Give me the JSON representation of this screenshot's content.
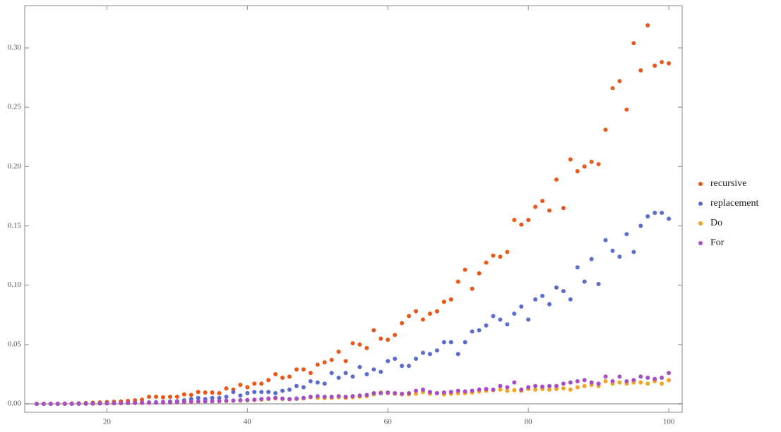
{
  "chart_data": {
    "type": "scatter",
    "x": [
      10,
      11,
      12,
      13,
      14,
      15,
      16,
      17,
      18,
      19,
      20,
      21,
      22,
      23,
      24,
      25,
      26,
      27,
      28,
      29,
      30,
      31,
      32,
      33,
      34,
      35,
      36,
      37,
      38,
      39,
      40,
      41,
      42,
      43,
      44,
      45,
      46,
      47,
      48,
      49,
      50,
      51,
      52,
      53,
      54,
      55,
      56,
      57,
      58,
      59,
      60,
      61,
      62,
      63,
      64,
      65,
      66,
      67,
      68,
      69,
      70,
      71,
      72,
      73,
      74,
      75,
      76,
      77,
      78,
      79,
      80,
      81,
      82,
      83,
      84,
      85,
      86,
      87,
      88,
      89,
      90,
      91,
      92,
      93,
      94,
      95,
      96,
      97,
      98,
      99,
      100
    ],
    "series": [
      {
        "name": "recursive",
        "color": "#e8581a",
        "values": [
          0,
          0,
          0,
          0.0001,
          0.0002,
          0.0003,
          0.0005,
          0.0007,
          0.001,
          0.0012,
          0.0015,
          0.0018,
          0.002,
          0.0025,
          0.003,
          0.0035,
          0.006,
          0.006,
          0.0055,
          0.006,
          0.006,
          0.008,
          0.0075,
          0.01,
          0.0095,
          0.0095,
          0.009,
          0.013,
          0.012,
          0.016,
          0.014,
          0.017,
          0.017,
          0.02,
          0.025,
          0.022,
          0.023,
          0.029,
          0.029,
          0.026,
          0.033,
          0.035,
          0.037,
          0.044,
          0.036,
          0.051,
          0.05,
          0.047,
          0.062,
          0.055,
          0.054,
          0.058,
          0.068,
          0.074,
          0.078,
          0.071,
          0.076,
          0.078,
          0.086,
          0.088,
          0.103,
          0.113,
          0.097,
          0.11,
          0.119,
          0.125,
          0.124,
          0.128,
          0.155,
          0.151,
          0.155,
          0.166,
          0.171,
          0.163,
          0.189,
          0.165,
          0.206,
          0.196,
          0.2,
          0.204,
          0.202,
          0.231,
          0.266,
          0.272,
          0.248,
          0.304,
          0.281,
          0.319,
          0.285,
          0.288,
          0.287
        ]
      },
      {
        "name": "replacement",
        "color": "#5a6ccc",
        "values": [
          0,
          0,
          0,
          0,
          0,
          0.0001,
          0.0001,
          0.0002,
          0.0002,
          0.0003,
          0.0004,
          0.0005,
          0.0006,
          0.0007,
          0.0008,
          0.001,
          0.0012,
          0.0014,
          0.0016,
          0.002,
          0.0022,
          0.003,
          0.004,
          0.005,
          0.004,
          0.005,
          0.005,
          0.006,
          0.01,
          0.007,
          0.009,
          0.01,
          0.01,
          0.01,
          0.009,
          0.011,
          0.012,
          0.015,
          0.014,
          0.019,
          0.018,
          0.017,
          0.026,
          0.022,
          0.026,
          0.023,
          0.031,
          0.025,
          0.029,
          0.027,
          0.036,
          0.038,
          0.032,
          0.032,
          0.038,
          0.043,
          0.042,
          0.045,
          0.052,
          0.052,
          0.042,
          0.052,
          0.061,
          0.062,
          0.066,
          0.074,
          0.071,
          0.067,
          0.076,
          0.082,
          0.071,
          0.088,
          0.091,
          0.084,
          0.098,
          0.095,
          0.088,
          0.115,
          0.103,
          0.122,
          0.101,
          0.138,
          0.129,
          0.124,
          0.143,
          0.128,
          0.15,
          0.158,
          0.161,
          0.161,
          0.156
        ]
      },
      {
        "name": "Do",
        "color": "#f2a51e",
        "values": [
          0,
          0,
          0,
          0,
          0,
          0.0001,
          0.0001,
          0.0002,
          0.0002,
          0.0003,
          0.0004,
          0.0005,
          0.0005,
          0.0006,
          0.0007,
          0.0008,
          0.0009,
          0.001,
          0.001,
          0.0012,
          0.0013,
          0.0015,
          0.0016,
          0.0018,
          0.002,
          0.002,
          0.0022,
          0.0024,
          0.0026,
          0.0028,
          0.003,
          0.0032,
          0.0035,
          0.004,
          0.0045,
          0.004,
          0.0038,
          0.004,
          0.0045,
          0.0055,
          0.005,
          0.0048,
          0.005,
          0.0055,
          0.005,
          0.0055,
          0.006,
          0.0065,
          0.008,
          0.0095,
          0.009,
          0.0085,
          0.008,
          0.008,
          0.0085,
          0.01,
          0.0085,
          0.009,
          0.008,
          0.0085,
          0.009,
          0.009,
          0.0095,
          0.0105,
          0.011,
          0.0115,
          0.012,
          0.011,
          0.0115,
          0.011,
          0.0125,
          0.012,
          0.0125,
          0.012,
          0.0125,
          0.013,
          0.012,
          0.014,
          0.015,
          0.016,
          0.015,
          0.019,
          0.017,
          0.018,
          0.017,
          0.018,
          0.018,
          0.017,
          0.019,
          0.017,
          0.02
        ]
      },
      {
        "name": "For",
        "color": "#a64dc4",
        "values": [
          0,
          0,
          0,
          0,
          0.0001,
          0.0001,
          0.0002,
          0.0002,
          0.0003,
          0.0003,
          0.0004,
          0.0005,
          0.0006,
          0.0007,
          0.0008,
          0.0009,
          0.001,
          0.0011,
          0.0012,
          0.0013,
          0.0015,
          0.0016,
          0.0018,
          0.002,
          0.002,
          0.0022,
          0.0024,
          0.0026,
          0.0028,
          0.003,
          0.0032,
          0.0035,
          0.004,
          0.0045,
          0.005,
          0.0045,
          0.004,
          0.0045,
          0.005,
          0.006,
          0.0065,
          0.006,
          0.006,
          0.0065,
          0.006,
          0.0065,
          0.007,
          0.0075,
          0.009,
          0.009,
          0.0095,
          0.009,
          0.0085,
          0.009,
          0.011,
          0.012,
          0.01,
          0.009,
          0.0095,
          0.01,
          0.011,
          0.0105,
          0.011,
          0.012,
          0.0125,
          0.012,
          0.015,
          0.014,
          0.018,
          0.012,
          0.014,
          0.015,
          0.0145,
          0.015,
          0.015,
          0.017,
          0.018,
          0.019,
          0.02,
          0.018,
          0.017,
          0.023,
          0.019,
          0.023,
          0.019,
          0.02,
          0.023,
          0.022,
          0.021,
          0.022,
          0.026
        ]
      }
    ],
    "xlim": [
      8.3,
      101.9
    ],
    "ylim": [
      -0.0071,
      0.3356
    ],
    "xticks": [
      20,
      40,
      60,
      80,
      100
    ],
    "yticks": [
      {
        "value": 0,
        "label": "0.00"
      },
      {
        "value": 0.05,
        "label": "0.05"
      },
      {
        "value": 0.1,
        "label": "0.10"
      },
      {
        "value": 0.15,
        "label": "0.15"
      },
      {
        "value": 0.2,
        "label": "0.20"
      },
      {
        "value": 0.25,
        "label": "0.25"
      },
      {
        "value": 0.3,
        "label": "0.30"
      }
    ],
    "legend": "right"
  }
}
